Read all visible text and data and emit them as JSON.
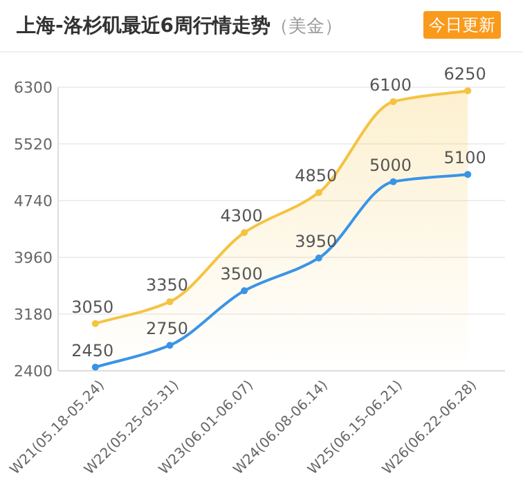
{
  "chart_data": {
    "type": "line",
    "title": "上海-洛杉矶最近6周行情走势",
    "subtitle": "（美金）",
    "annotations": [
      "今日更新"
    ],
    "categories": [
      "W21(05.18-05.24)",
      "W22(05.25-05.31)",
      "W23(06.01-06.07)",
      "W24(06.08-06.14)",
      "W25(06.15-06.21)",
      "W26(06.22-06.28)"
    ],
    "series": [
      {
        "type": "area",
        "color": "#f5c342",
        "values": [
          3050,
          3350,
          4300,
          4850,
          6100,
          6250
        ]
      },
      {
        "type": "line",
        "color": "#3a94e6",
        "values": [
          2450,
          2750,
          3500,
          3950,
          5000,
          5100
        ]
      }
    ],
    "ylim": [
      2400,
      6300
    ],
    "yticks": [
      2400,
      3180,
      3960,
      4740,
      5520,
      6300
    ],
    "grid": "y",
    "marker": "circle",
    "line_style": "solid",
    "data_labels": true
  }
}
